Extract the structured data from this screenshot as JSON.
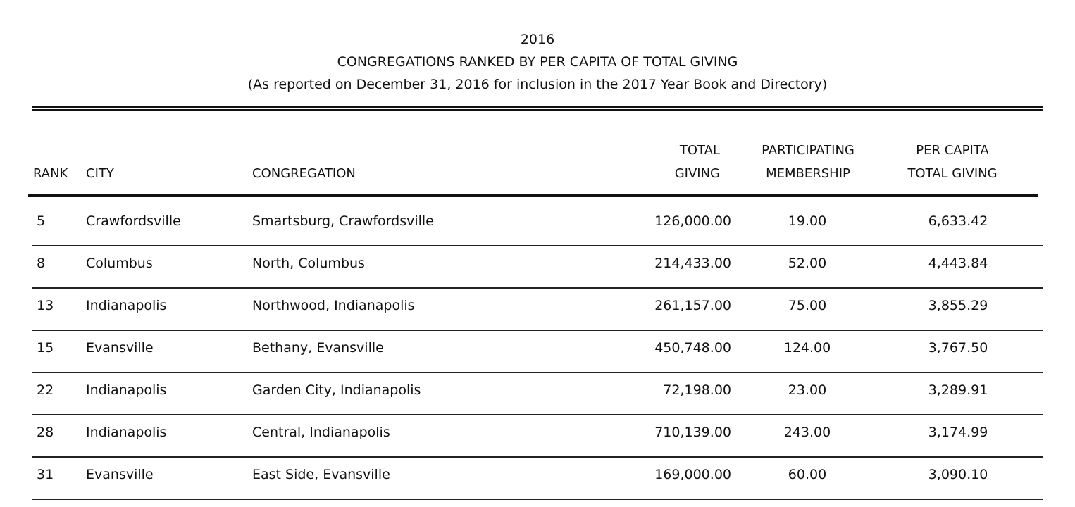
{
  "title": {
    "year": "2016",
    "heading": "CONGREGATIONS RANKED BY PER CAPITA OF TOTAL GIVING",
    "subheading": "(As reported on December 31, 2016 for inclusion in the 2017  Year Book and Directory)"
  },
  "columns": {
    "rank": "RANK",
    "city": "CITY",
    "congregation": "CONGREGATION",
    "total_giving": [
      "TOTAL",
      "GIVING"
    ],
    "membership": [
      "PARTICIPATING",
      "MEMBERSHIP"
    ],
    "per_capita": [
      "PER CAPITA",
      "TOTAL GIVING"
    ]
  },
  "rows": [
    {
      "rank": "5",
      "city": "Crawfordsville",
      "congregation": "Smartsburg, Crawfordsville",
      "total_giving": "126,000.00",
      "membership": "19.00",
      "per_capita": "6,633.42"
    },
    {
      "rank": "8",
      "city": "Columbus",
      "congregation": "North, Columbus",
      "total_giving": "214,433.00",
      "membership": "52.00",
      "per_capita": "4,443.84"
    },
    {
      "rank": "13",
      "city": "Indianapolis",
      "congregation": "Northwood, Indianapolis",
      "total_giving": "261,157.00",
      "membership": "75.00",
      "per_capita": "3,855.29"
    },
    {
      "rank": "15",
      "city": "Evansville",
      "congregation": "Bethany, Evansville",
      "total_giving": "450,748.00",
      "membership": "124.00",
      "per_capita": "3,767.50"
    },
    {
      "rank": "22",
      "city": "Indianapolis",
      "congregation": "Garden City, Indianapolis",
      "total_giving": "72,198.00",
      "membership": "23.00",
      "per_capita": "3,289.91"
    },
    {
      "rank": "28",
      "city": "Indianapolis",
      "congregation": "Central, Indianapolis",
      "total_giving": "710,139.00",
      "membership": "243.00",
      "per_capita": "3,174.99"
    },
    {
      "rank": "31",
      "city": "Evansville",
      "congregation": "East Side, Evansville",
      "total_giving": "169,000.00",
      "membership": "60.00",
      "per_capita": "3,090.10"
    }
  ]
}
